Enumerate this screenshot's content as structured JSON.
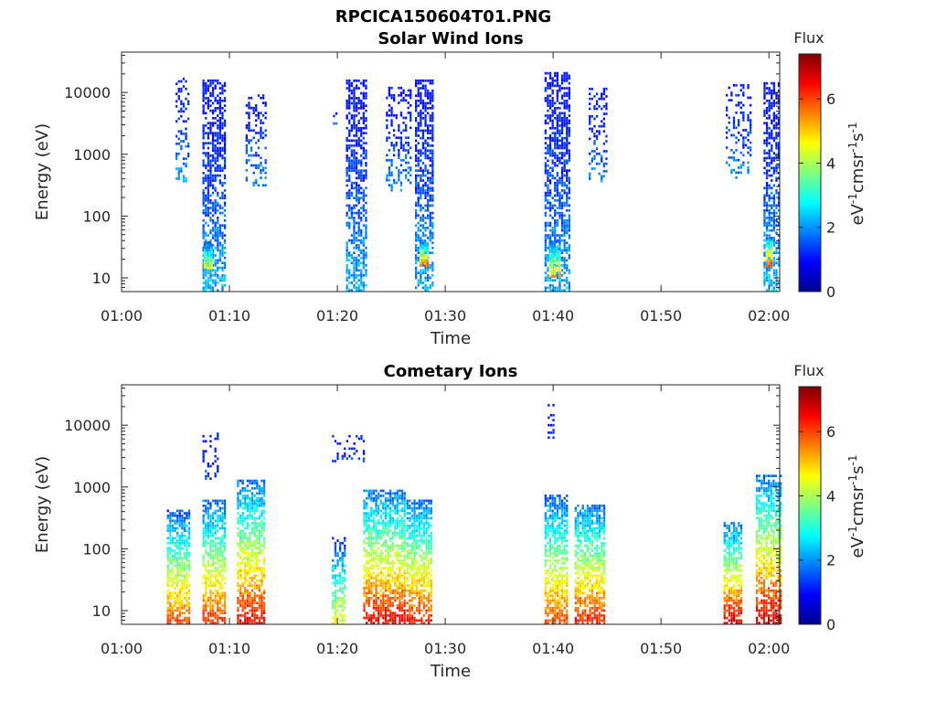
{
  "figure_title": "RPCICA150604T01.PNG",
  "chart_data": [
    {
      "type": "heatmap",
      "title": "Solar Wind Ions",
      "xlabel": "Time",
      "ylabel": "Energy (eV)",
      "x_ticks": [
        "01:00",
        "01:10",
        "01:20",
        "01:30",
        "01:40",
        "01:50",
        "02:00"
      ],
      "y_ticks": [
        "10",
        "100",
        "1000",
        "10000"
      ],
      "y_scale": "log",
      "ylim": [
        6,
        45000
      ],
      "xlim_minutes": [
        0,
        61
      ],
      "colorbar": {
        "title": "Flux",
        "label": "eV-1cm-2sr-1s-1",
        "ticks": [
          "0",
          "2",
          "4",
          "6"
        ],
        "range": [
          0,
          7.4
        ],
        "colormap": "jet"
      },
      "bursts": [
        {
          "t0": 5.0,
          "t1": 6.2,
          "emin": 350,
          "emax": 16000,
          "peak": 2.1,
          "density": 0.35
        },
        {
          "t0": 7.5,
          "t1": 9.6,
          "emin": 6,
          "emax": 15000,
          "peak": 2.2,
          "density": 0.6
        },
        {
          "t0": 7.6,
          "t1": 8.4,
          "emin": 14,
          "emax": 38,
          "peak": 4.6,
          "density": 0.9
        },
        {
          "t0": 11.5,
          "t1": 13.3,
          "emin": 300,
          "emax": 9000,
          "peak": 2.0,
          "density": 0.35
        },
        {
          "t0": 19.6,
          "t1": 19.9,
          "emin": 3000,
          "emax": 4500,
          "peak": 1.8,
          "density": 0.5
        },
        {
          "t0": 20.8,
          "t1": 22.6,
          "emin": 6,
          "emax": 15000,
          "peak": 2.2,
          "density": 0.6
        },
        {
          "t0": 24.5,
          "t1": 26.8,
          "emin": 250,
          "emax": 12000,
          "peak": 1.9,
          "density": 0.3
        },
        {
          "t0": 27.2,
          "t1": 28.8,
          "emin": 6,
          "emax": 16000,
          "peak": 2.2,
          "density": 0.6
        },
        {
          "t0": 27.6,
          "t1": 28.4,
          "emin": 15,
          "emax": 40,
          "peak": 5.8,
          "density": 0.9
        },
        {
          "t0": 39.2,
          "t1": 41.6,
          "emin": 6,
          "emax": 20000,
          "peak": 2.2,
          "density": 0.6
        },
        {
          "t0": 39.6,
          "t1": 40.6,
          "emin": 10,
          "emax": 40,
          "peak": 5.2,
          "density": 0.9
        },
        {
          "t0": 43.3,
          "t1": 45.0,
          "emin": 350,
          "emax": 11000,
          "peak": 1.9,
          "density": 0.3
        },
        {
          "t0": 56.0,
          "t1": 58.2,
          "emin": 400,
          "emax": 13000,
          "peak": 2.0,
          "density": 0.3
        },
        {
          "t0": 59.5,
          "t1": 61.0,
          "emin": 6,
          "emax": 14000,
          "peak": 2.3,
          "density": 0.6
        },
        {
          "t0": 59.7,
          "t1": 60.3,
          "emin": 15,
          "emax": 45,
          "peak": 6.0,
          "density": 0.9
        }
      ]
    },
    {
      "type": "heatmap",
      "title": "Cometary Ions",
      "xlabel": "Time",
      "ylabel": "Energy (eV)",
      "x_ticks": [
        "01:00",
        "01:10",
        "01:20",
        "01:30",
        "01:40",
        "01:50",
        "02:00"
      ],
      "y_ticks": [
        "10",
        "100",
        "1000",
        "10000"
      ],
      "y_scale": "log",
      "ylim": [
        6,
        45000
      ],
      "xlim_minutes": [
        0,
        61
      ],
      "colorbar": {
        "title": "Flux",
        "label": "eV-1cm-2sr-1s-1",
        "ticks": [
          "0",
          "2",
          "4",
          "6"
        ],
        "range": [
          0,
          7.4
        ],
        "colormap": "jet"
      },
      "bursts": [
        {
          "t0": 4.2,
          "t1": 6.2,
          "emin": 6,
          "emax": 400,
          "peak": 6.0,
          "density": 0.7
        },
        {
          "t0": 7.5,
          "t1": 9.5,
          "emin": 6,
          "emax": 600,
          "peak": 6.2,
          "density": 0.7
        },
        {
          "t0": 10.7,
          "t1": 13.2,
          "emin": 6,
          "emax": 1200,
          "peak": 6.6,
          "density": 0.7
        },
        {
          "t0": 19.5,
          "t1": 20.6,
          "emin": 6,
          "emax": 150,
          "peak": 4.6,
          "density": 0.6
        },
        {
          "t0": 22.4,
          "t1": 26.3,
          "emin": 6,
          "emax": 900,
          "peak": 6.6,
          "density": 0.7
        },
        {
          "t0": 26.4,
          "t1": 28.8,
          "emin": 6,
          "emax": 600,
          "peak": 6.4,
          "density": 0.7
        },
        {
          "t0": 39.2,
          "t1": 41.2,
          "emin": 6,
          "emax": 700,
          "peak": 6.0,
          "density": 0.7
        },
        {
          "t0": 42.0,
          "t1": 44.8,
          "emin": 6,
          "emax": 500,
          "peak": 6.4,
          "density": 0.7
        },
        {
          "t0": 55.8,
          "t1": 57.4,
          "emin": 6,
          "emax": 250,
          "peak": 6.8,
          "density": 0.7
        },
        {
          "t0": 58.8,
          "t1": 61.0,
          "emin": 6,
          "emax": 1500,
          "peak": 6.8,
          "density": 0.7
        },
        {
          "t0": 7.5,
          "t1": 9.0,
          "emin": 1300,
          "emax": 7500,
          "peak": 1.4,
          "density": 0.25
        },
        {
          "t0": 19.5,
          "t1": 22.5,
          "emin": 2500,
          "emax": 6500,
          "peak": 1.4,
          "density": 0.2
        },
        {
          "t0": 39.5,
          "t1": 40.0,
          "emin": 6000,
          "emax": 21000,
          "peak": 1.3,
          "density": 0.4
        }
      ]
    }
  ]
}
